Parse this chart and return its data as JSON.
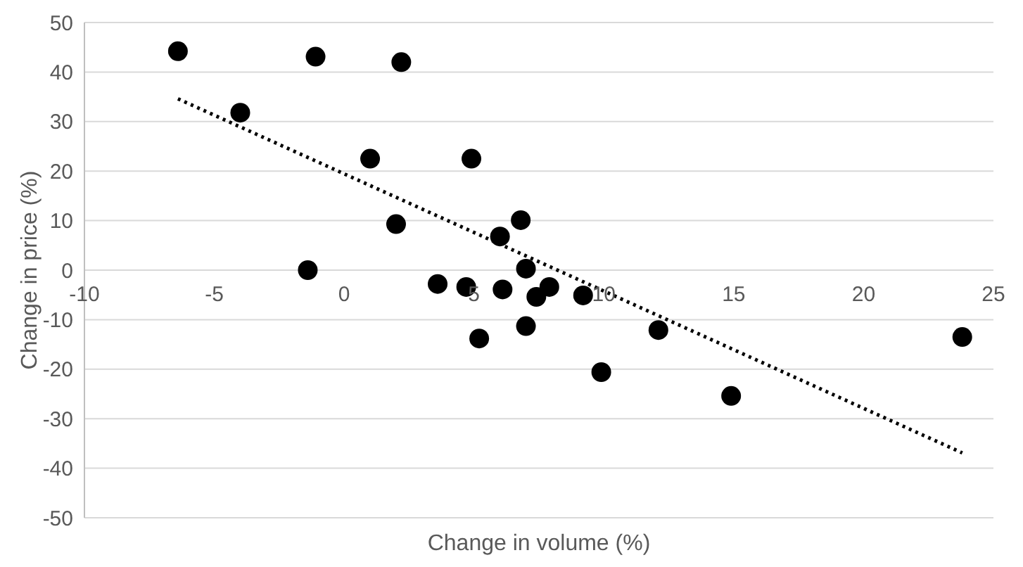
{
  "chart_data": {
    "type": "scatter",
    "xlabel": "Change in volume (%)",
    "ylabel": "Change in price (%)",
    "xlim": [
      -10,
      25
    ],
    "xticks": [
      -10,
      -5,
      0,
      5,
      10,
      15,
      20,
      25
    ],
    "ylim": [
      -50,
      50
    ],
    "yticks": [
      -50,
      -40,
      -30,
      -20,
      -10,
      0,
      10,
      20,
      30,
      40,
      50
    ],
    "grid": "y",
    "legend": false,
    "series": [
      {
        "color": "#000000",
        "marker": "circle",
        "x": [
          -6.4,
          -4.0,
          -1.4,
          -1.1,
          2.2,
          1.0,
          2.0,
          4.9,
          3.6,
          4.7,
          5.2,
          6.0,
          6.1,
          6.8,
          7.0,
          7.0,
          7.4,
          7.9,
          9.2,
          9.9,
          12.1,
          14.9,
          23.8
        ],
        "values": [
          44.2,
          31.8,
          0,
          43.1,
          42,
          22.5,
          9.3,
          22.5,
          -2.8,
          -3.4,
          -13.8,
          6.8,
          -3.9,
          10.1,
          0.3,
          -11.3,
          -5.4,
          -3.4,
          -5.1,
          -20.6,
          -12.1,
          -25.4,
          -13.5
        ]
      },
      {
        "type": "line",
        "color": "#000000",
        "marker": "none",
        "line_style": "dotted",
        "x": [
          -6.4,
          23.8
        ],
        "values": [
          34.6,
          -36.9
        ]
      }
    ]
  }
}
